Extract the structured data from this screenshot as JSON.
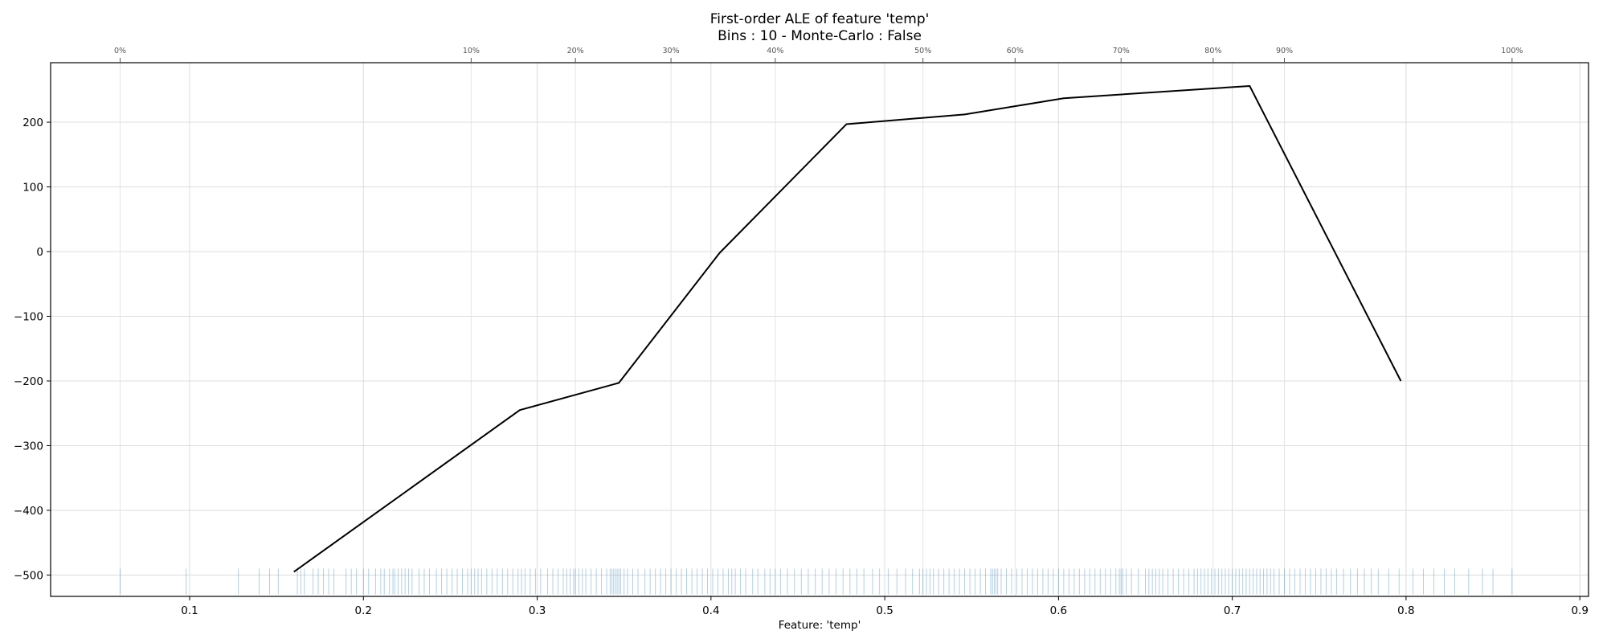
{
  "chart_data": {
    "type": "line",
    "title": "First-order ALE of feature 'temp'",
    "subtitle": "Bins : 10 - Monte-Carlo : False",
    "xlabel": "Feature: 'temp'",
    "ylabel": "",
    "xlim": [
      0.02,
      0.905
    ],
    "ylim": [
      -533,
      292
    ],
    "x_ticks": [
      "0.1",
      "0.2",
      "0.3",
      "0.4",
      "0.5",
      "0.6",
      "0.7",
      "0.8",
      "0.9"
    ],
    "y_ticks": [
      "−500",
      "−400",
      "−300",
      "−200",
      "−100",
      "0",
      "100",
      "200"
    ],
    "grid": true,
    "line_color": "#000000",
    "rug_color": "#1f77b4",
    "series": [
      {
        "x": [
          0.16,
          0.29,
          0.347,
          0.405,
          0.478,
          0.546,
          0.603,
          0.71,
          0.797
        ],
        "y": [
          -495,
          -245,
          -203,
          -2,
          197,
          212,
          237,
          256,
          -200
        ]
      }
    ],
    "quantile_axis": {
      "labels": [
        "0%",
        "10%",
        "20%",
        "30%",
        "40%",
        "50%",
        "60%",
        "70%",
        "80%",
        "90%",
        "100%"
      ],
      "x": [
        0.06,
        0.262,
        0.322,
        0.377,
        0.437,
        0.522,
        0.575,
        0.636,
        0.689,
        0.73,
        0.861
      ]
    },
    "rug": {
      "y": -510,
      "x": [
        0.06,
        0.098,
        0.128,
        0.14,
        0.146,
        0.151,
        0.162,
        0.164,
        0.166,
        0.171,
        0.174,
        0.177,
        0.18,
        0.183,
        0.19,
        0.193,
        0.196,
        0.2,
        0.203,
        0.207,
        0.21,
        0.212,
        0.215,
        0.217,
        0.218,
        0.22,
        0.222,
        0.224,
        0.226,
        0.228,
        0.232,
        0.235,
        0.238,
        0.242,
        0.245,
        0.248,
        0.251,
        0.254,
        0.257,
        0.26,
        0.262,
        0.264,
        0.266,
        0.268,
        0.271,
        0.274,
        0.277,
        0.28,
        0.283,
        0.286,
        0.289,
        0.291,
        0.293,
        0.296,
        0.299,
        0.302,
        0.306,
        0.309,
        0.312,
        0.315,
        0.317,
        0.319,
        0.321,
        0.322,
        0.324,
        0.326,
        0.328,
        0.331,
        0.334,
        0.337,
        0.34,
        0.342,
        0.343,
        0.344,
        0.345,
        0.346,
        0.347,
        0.348,
        0.35,
        0.352,
        0.355,
        0.358,
        0.362,
        0.365,
        0.368,
        0.371,
        0.374,
        0.377,
        0.38,
        0.383,
        0.386,
        0.389,
        0.392,
        0.395,
        0.398,
        0.401,
        0.404,
        0.407,
        0.41,
        0.412,
        0.414,
        0.417,
        0.42,
        0.424,
        0.427,
        0.431,
        0.434,
        0.437,
        0.44,
        0.444,
        0.448,
        0.452,
        0.456,
        0.46,
        0.464,
        0.468,
        0.472,
        0.476,
        0.48,
        0.484,
        0.488,
        0.493,
        0.497,
        0.502,
        0.507,
        0.512,
        0.516,
        0.52,
        0.522,
        0.524,
        0.526,
        0.528,
        0.531,
        0.534,
        0.537,
        0.54,
        0.543,
        0.546,
        0.549,
        0.552,
        0.555,
        0.558,
        0.561,
        0.562,
        0.563,
        0.564,
        0.565,
        0.567,
        0.57,
        0.573,
        0.576,
        0.579,
        0.582,
        0.585,
        0.588,
        0.591,
        0.594,
        0.597,
        0.6,
        0.603,
        0.606,
        0.609,
        0.612,
        0.615,
        0.618,
        0.621,
        0.624,
        0.627,
        0.63,
        0.633,
        0.635,
        0.636,
        0.637,
        0.639,
        0.642,
        0.646,
        0.65,
        0.652,
        0.654,
        0.656,
        0.658,
        0.66,
        0.663,
        0.666,
        0.669,
        0.672,
        0.675,
        0.678,
        0.68,
        0.682,
        0.684,
        0.686,
        0.688,
        0.69,
        0.692,
        0.694,
        0.696,
        0.698,
        0.7,
        0.702,
        0.704,
        0.706,
        0.708,
        0.71,
        0.712,
        0.714,
        0.716,
        0.718,
        0.72,
        0.722,
        0.724,
        0.727,
        0.73,
        0.733,
        0.736,
        0.739,
        0.742,
        0.745,
        0.748,
        0.751,
        0.754,
        0.757,
        0.76,
        0.764,
        0.768,
        0.772,
        0.776,
        0.78,
        0.784,
        0.79,
        0.796,
        0.804,
        0.81,
        0.816,
        0.822,
        0.828,
        0.836,
        0.844,
        0.85,
        0.861
      ]
    }
  }
}
